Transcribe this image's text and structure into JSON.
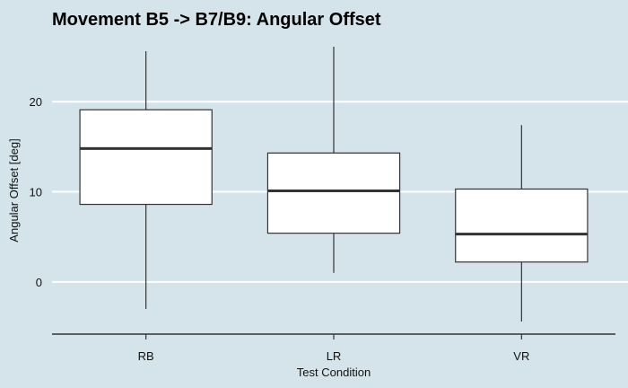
{
  "chart_data": {
    "type": "box",
    "title": "Movement B5 -> B7/B9: Angular Offset",
    "xlabel": "Test Condition",
    "ylabel": "Angular Offset [deg]",
    "categories": [
      "RB",
      "LR",
      "VR"
    ],
    "boxes": [
      {
        "category": "RB",
        "whisker_low": -3.0,
        "q1": 8.6,
        "median": 14.8,
        "q3": 19.1,
        "whisker_high": 25.6
      },
      {
        "category": "LR",
        "whisker_low": 1.0,
        "q1": 5.4,
        "median": 10.1,
        "q3": 14.3,
        "whisker_high": 26.1
      },
      {
        "category": "VR",
        "whisker_low": -4.4,
        "q1": 2.2,
        "median": 5.3,
        "q3": 10.3,
        "whisker_high": 17.4
      }
    ],
    "yticks": [
      0,
      10,
      20
    ],
    "ylim": [
      -5.8,
      26.1
    ],
    "grid": true,
    "colors": {
      "background": "#d5e4eb",
      "box_fill": "#ffffff",
      "stroke": "#333333",
      "grid": "#ffffff"
    }
  }
}
